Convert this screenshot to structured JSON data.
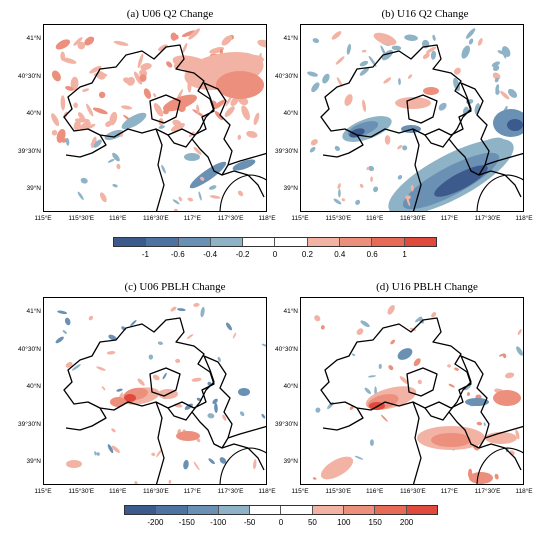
{
  "panels": [
    {
      "id": "a",
      "title": "(a) U06 Q2 Change"
    },
    {
      "id": "b",
      "title": "(b) U16 Q2 Change"
    },
    {
      "id": "c",
      "title": "(c) U06 PBLH Change"
    },
    {
      "id": "d",
      "title": "(d) U16 PBLH Change"
    }
  ],
  "axes": {
    "lat_labels": [
      "41°N",
      "40°30'N",
      "40°N",
      "39°30'N",
      "39°N"
    ],
    "lon_labels": [
      "115°E",
      "115°30'E",
      "116°E",
      "116°30'E",
      "117°E",
      "117°30'E",
      "118°E"
    ]
  },
  "colorbars": {
    "q2": {
      "labels": [
        "-1",
        "-0.6",
        "-0.4",
        "-0.2",
        "0",
        "0.2",
        "0.4",
        "0.6",
        "1"
      ],
      "colors": [
        "#3d5a8c",
        "#4f73a0",
        "#6a90b4",
        "#8fb3c6",
        "#ffffff",
        "#ffffff",
        "#f2b3a5",
        "#ec8f7c",
        "#e66a55",
        "#e04a3c"
      ]
    },
    "pblh": {
      "labels": [
        "-200",
        "-150",
        "-100",
        "-50",
        "0",
        "50",
        "100",
        "150",
        "200"
      ],
      "colors": [
        "#3d5a8c",
        "#4f73a0",
        "#6a90b4",
        "#8fb3c6",
        "#ffffff",
        "#ffffff",
        "#f2b3a5",
        "#ec8f7c",
        "#e66a55",
        "#e04a3c"
      ]
    }
  },
  "colors": {
    "warm_light": "#f2b3a5",
    "warm": "#ec8f7c",
    "warm_dark": "#e04a3c",
    "cool_light": "#8fb3c6",
    "cool": "#6a90b4",
    "cool_dark": "#3d5a8c",
    "boundary": "#000000"
  }
}
